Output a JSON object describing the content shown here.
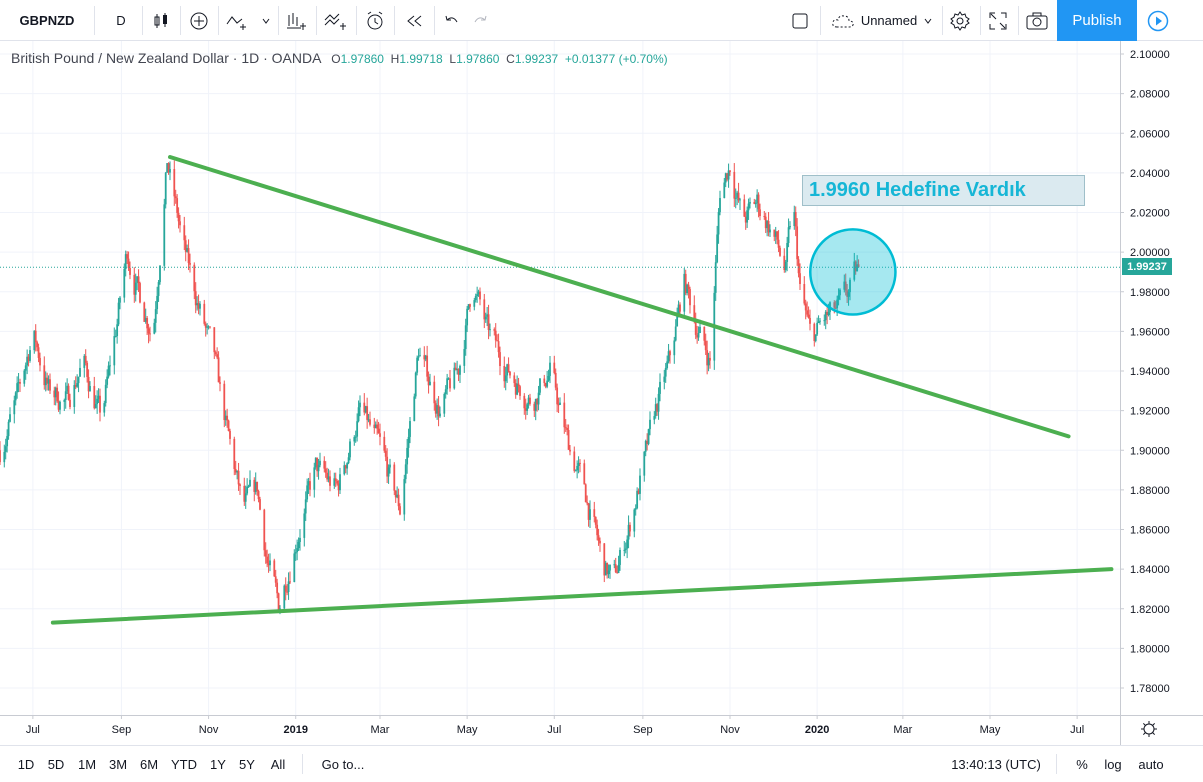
{
  "toolbar": {
    "symbol": "GBPNZD",
    "interval": "D",
    "layout_name": "Unnamed",
    "publish_label": "Publish",
    "icons": [
      "candles-icon",
      "add-indicator-icon",
      "line-tool-icon",
      "compare-icon",
      "indicators-icon",
      "alert-icon",
      "replay-icon",
      "undo-icon",
      "redo-icon",
      "fullscreen-icon",
      "settings-icon",
      "snapshot-icon",
      "play-icon"
    ]
  },
  "legend": {
    "title": "British Pound / New Zealand Dollar · 1D · OANDA",
    "o_label": "O",
    "o_value": "1.97860",
    "h_label": "H",
    "h_value": "1.99718",
    "l_label": "L",
    "l_value": "1.97860",
    "c_label": "C",
    "c_value": "1.99237",
    "change": "+0.01377 (+0.70%)"
  },
  "annotation": {
    "text": "1.9960 Hedefine Vardık"
  },
  "bottombar": {
    "ranges": [
      "1D",
      "5D",
      "1M",
      "3M",
      "6M",
      "YTD",
      "1Y",
      "5Y",
      "All"
    ],
    "goto_label": "Go to...",
    "clock": "13:40:13 (UTC)",
    "percent_label": "%",
    "log_label": "log",
    "auto_label": "auto"
  },
  "chart_data": {
    "type": "candlestick",
    "symbol": "GBPNZD",
    "ylim": [
      1.77,
      2.105
    ],
    "yticks": [
      "2.10000",
      "2.08000",
      "2.06000",
      "2.04000",
      "2.02000",
      "2.00000",
      "1.98000",
      "1.96000",
      "1.94000",
      "1.92000",
      "1.90000",
      "1.88000",
      "1.86000",
      "1.84000",
      "1.82000",
      "1.80000",
      "1.78000"
    ],
    "xticks": [
      {
        "label": "Jul",
        "date": "2018-07-01"
      },
      {
        "label": "Sep",
        "date": "2018-09-01"
      },
      {
        "label": "Nov",
        "date": "2018-11-01"
      },
      {
        "label": "2019",
        "date": "2019-01-01"
      },
      {
        "label": "Mar",
        "date": "2019-03-01"
      },
      {
        "label": "May",
        "date": "2019-05-01"
      },
      {
        "label": "Jul",
        "date": "2019-07-01"
      },
      {
        "label": "Sep",
        "date": "2019-09-01"
      },
      {
        "label": "Nov",
        "date": "2019-11-01"
      },
      {
        "label": "2020",
        "date": "2020-01-01"
      },
      {
        "label": "Mar",
        "date": "2020-03-01"
      },
      {
        "label": "May",
        "date": "2020-05-01"
      },
      {
        "label": "Jul",
        "date": "2020-07-01"
      }
    ],
    "x_range": [
      "2018-06-08",
      "2020-07-31"
    ],
    "last_price": "1.99237",
    "colors": {
      "up": "#26a69a",
      "down": "#ef5350",
      "trendline": "#4caf50",
      "circle": "#00bcd4"
    },
    "path": [
      [
        "2018-06-08",
        1.9
      ],
      [
        "2018-06-20",
        1.925
      ],
      [
        "2018-07-01",
        1.96
      ],
      [
        "2018-07-12",
        1.93
      ],
      [
        "2018-07-25",
        1.925
      ],
      [
        "2018-08-05",
        1.945
      ],
      [
        "2018-08-18",
        1.915
      ],
      [
        "2018-08-28",
        1.96
      ],
      [
        "2018-09-05",
        2.0
      ],
      [
        "2018-09-15",
        1.975
      ],
      [
        "2018-09-23",
        1.96
      ],
      [
        "2018-10-03",
        2.045
      ],
      [
        "2018-10-15",
        2.0
      ],
      [
        "2018-10-28",
        1.965
      ],
      [
        "2018-11-05",
        1.945
      ],
      [
        "2018-11-15",
        1.905
      ],
      [
        "2018-11-25",
        1.87
      ],
      [
        "2018-12-05",
        1.88
      ],
      [
        "2018-12-12",
        1.845
      ],
      [
        "2018-12-20",
        1.82
      ],
      [
        "2019-01-01",
        1.855
      ],
      [
        "2019-01-15",
        1.89
      ],
      [
        "2019-01-30",
        1.88
      ],
      [
        "2019-02-15",
        1.92
      ],
      [
        "2019-03-01",
        1.9
      ],
      [
        "2019-03-15",
        1.87
      ],
      [
        "2019-03-28",
        1.95
      ],
      [
        "2019-04-12",
        1.92
      ],
      [
        "2019-04-25",
        1.94
      ],
      [
        "2019-05-05",
        1.985
      ],
      [
        "2019-05-15",
        1.96
      ],
      [
        "2019-05-30",
        1.94
      ],
      [
        "2019-06-15",
        1.925
      ],
      [
        "2019-06-28",
        1.94
      ],
      [
        "2019-07-10",
        1.905
      ],
      [
        "2019-07-22",
        1.88
      ],
      [
        "2019-08-05",
        1.84
      ],
      [
        "2019-08-12",
        1.835
      ],
      [
        "2019-08-22",
        1.86
      ],
      [
        "2019-09-01",
        1.89
      ],
      [
        "2019-09-10",
        1.92
      ],
      [
        "2019-09-20",
        1.945
      ],
      [
        "2019-09-30",
        1.985
      ],
      [
        "2019-10-10",
        1.96
      ],
      [
        "2019-10-18",
        1.945
      ],
      [
        "2019-10-25",
        2.03
      ],
      [
        "2019-11-01",
        2.045
      ],
      [
        "2019-11-10",
        2.015
      ],
      [
        "2019-11-20",
        2.025
      ],
      [
        "2019-12-01",
        2.01
      ],
      [
        "2019-12-10",
        1.99
      ],
      [
        "2019-12-15",
        2.025
      ],
      [
        "2019-12-20",
        1.98
      ],
      [
        "2019-12-28",
        1.955
      ],
      [
        "2020-01-05",
        1.965
      ],
      [
        "2020-01-15",
        1.97
      ],
      [
        "2020-01-24",
        1.98
      ],
      [
        "2020-01-30",
        1.99237
      ]
    ],
    "trendlines": [
      {
        "from": [
          "2018-10-05",
          2.048
        ],
        "to": [
          "2020-06-25",
          1.907
        ]
      },
      {
        "from": [
          "2018-07-15",
          1.813
        ],
        "to": [
          "2020-07-25",
          1.84
        ]
      }
    ],
    "circle": {
      "center": [
        "2020-01-26",
        1.99
      ],
      "radius_price": 0.0215
    }
  }
}
